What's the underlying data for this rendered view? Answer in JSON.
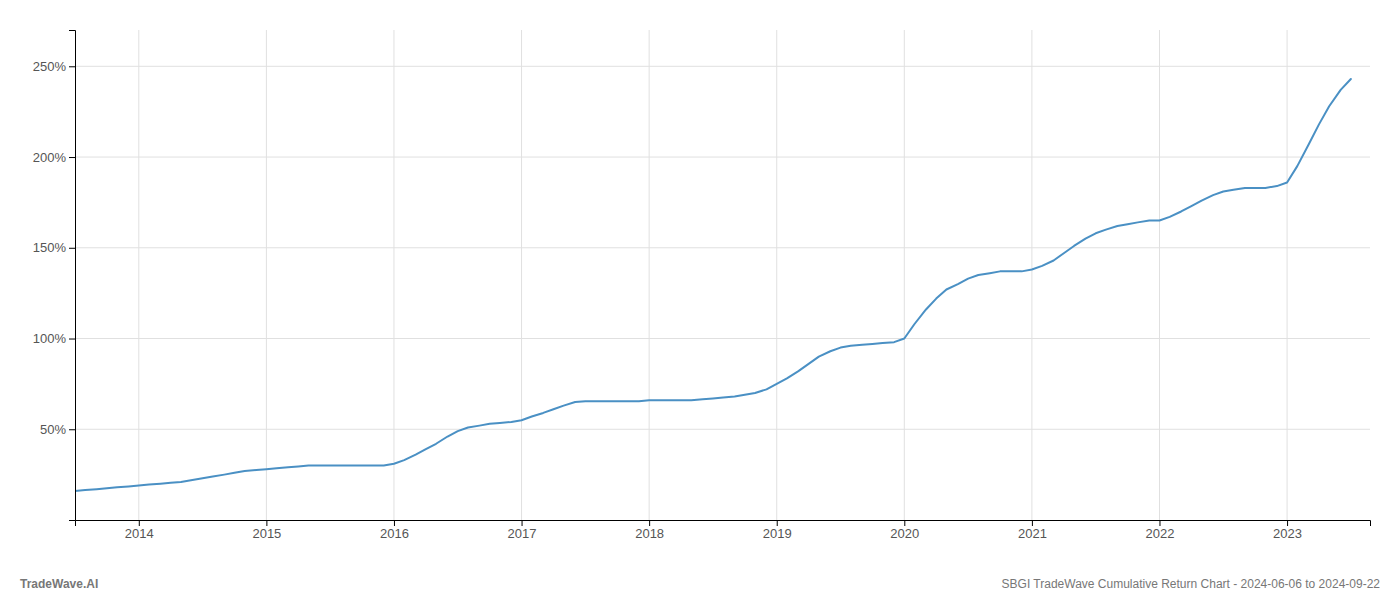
{
  "chart_data": {
    "type": "line",
    "x": [
      2013.5,
      2013.58,
      2013.67,
      2013.75,
      2013.83,
      2013.92,
      2014.0,
      2014.08,
      2014.17,
      2014.25,
      2014.33,
      2014.42,
      2014.5,
      2014.58,
      2014.67,
      2014.75,
      2014.83,
      2014.92,
      2015.0,
      2015.08,
      2015.17,
      2015.25,
      2015.33,
      2015.42,
      2015.5,
      2015.58,
      2015.67,
      2015.75,
      2015.83,
      2015.92,
      2016.0,
      2016.08,
      2016.17,
      2016.25,
      2016.33,
      2016.42,
      2016.5,
      2016.58,
      2016.67,
      2016.75,
      2016.83,
      2016.92,
      2017.0,
      2017.08,
      2017.17,
      2017.25,
      2017.33,
      2017.42,
      2017.5,
      2017.58,
      2017.67,
      2017.75,
      2017.83,
      2017.92,
      2018.0,
      2018.08,
      2018.17,
      2018.25,
      2018.33,
      2018.42,
      2018.5,
      2018.58,
      2018.67,
      2018.75,
      2018.83,
      2018.92,
      2019.0,
      2019.08,
      2019.17,
      2019.25,
      2019.33,
      2019.42,
      2019.5,
      2019.58,
      2019.67,
      2019.75,
      2019.83,
      2019.92,
      2020.0,
      2020.08,
      2020.17,
      2020.25,
      2020.33,
      2020.42,
      2020.5,
      2020.58,
      2020.67,
      2020.75,
      2020.83,
      2020.92,
      2021.0,
      2021.08,
      2021.17,
      2021.25,
      2021.33,
      2021.42,
      2021.5,
      2021.58,
      2021.67,
      2021.75,
      2021.83,
      2021.92,
      2022.0,
      2022.08,
      2022.17,
      2022.25,
      2022.33,
      2022.42,
      2022.5,
      2022.58,
      2022.67,
      2022.75,
      2022.83,
      2022.92,
      2023.0,
      2023.08,
      2023.17,
      2023.25,
      2023.33,
      2023.42,
      2023.5
    ],
    "values": [
      16,
      16.5,
      17,
      17.5,
      18,
      18.5,
      19,
      19.5,
      20,
      20.5,
      21,
      22,
      23,
      24,
      25,
      26,
      27,
      27.5,
      28,
      28.5,
      29,
      29.5,
      30,
      30,
      30,
      30,
      30,
      30,
      30,
      30,
      31,
      33,
      36,
      39,
      42,
      46,
      49,
      51,
      52,
      53,
      53.5,
      54,
      55,
      57,
      59,
      61,
      63,
      65,
      65.5,
      65.5,
      65.5,
      65.5,
      65.5,
      65.5,
      66,
      66,
      66,
      66,
      66,
      66.5,
      67,
      67.5,
      68,
      69,
      70,
      72,
      75,
      78,
      82,
      86,
      90,
      93,
      95,
      96,
      96.5,
      97,
      97.5,
      98,
      100,
      108,
      116,
      122,
      127,
      130,
      133,
      135,
      136,
      137,
      137,
      137,
      138,
      140,
      143,
      147,
      151,
      155,
      158,
      160,
      162,
      163,
      164,
      165,
      165,
      167,
      170,
      173,
      176,
      179,
      181,
      182,
      183,
      183,
      183,
      184,
      186,
      195,
      207,
      218,
      228,
      237,
      243
    ],
    "color": "#4a90c4",
    "xlim": [
      2013.5,
      2023.65
    ],
    "xticks": [
      2014,
      2015,
      2016,
      2017,
      2018,
      2019,
      2020,
      2021,
      2022,
      2023
    ],
    "ylim": [
      0,
      270
    ],
    "yticks": [
      {
        "value": 50,
        "label": "50%"
      },
      {
        "value": 100,
        "label": "100%"
      },
      {
        "value": 150,
        "label": "150%"
      },
      {
        "value": 200,
        "label": "200%"
      },
      {
        "value": 250,
        "label": "250%"
      }
    ],
    "grid": true,
    "annotations": [
      "TradeWave.AI",
      "SBGI TradeWave Cumulative Return Chart - 2024-06-06 to 2024-09-22"
    ]
  }
}
